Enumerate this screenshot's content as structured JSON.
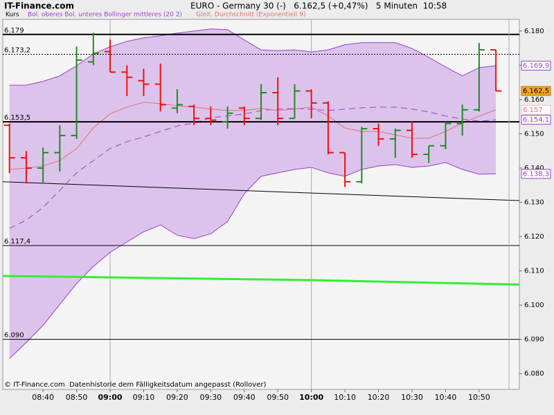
{
  "header": {
    "site": "IT-Finance.com",
    "title": "EURO - Germany 30 (-)   6.162,5 (+0,47%)   5 Minuten  10:58"
  },
  "footer": "© IT-Finance.com  Datenhistorie dem Fälligkeitsdatum angepasst (Rollover)",
  "chart_data": {
    "type": "ohlc",
    "legend": [
      {
        "text": "Kurs",
        "color": "#000000"
      },
      {
        "text": "Bol. oberes Bol. unteres Bollinger mittleres (20 2)",
        "color": "#9a3fc6"
      },
      {
        "text": "Gleit. Durchschnitt (Exponentiell 9)",
        "color": "#e07070"
      }
    ],
    "x": [
      "08:30",
      "08:35",
      "08:40",
      "08:45",
      "08:50",
      "08:55",
      "09:00",
      "09:05",
      "09:10",
      "09:15",
      "09:20",
      "09:25",
      "09:30",
      "09:35",
      "09:40",
      "09:45",
      "09:50",
      "09:55",
      "10:00",
      "10:05",
      "10:10",
      "10:15",
      "10:20",
      "10:25",
      "10:30",
      "10:35",
      "10:40",
      "10:45",
      "10:50",
      "10:55"
    ],
    "open": [
      6152.5,
      6143,
      6140,
      6144.5,
      6149.5,
      6171,
      6174,
      6168,
      6165.5,
      6164.5,
      6157.5,
      6158,
      6154.5,
      6153.5,
      6157.5,
      6154.5,
      6162,
      6154.5,
      6162.5,
      6159,
      6144.5,
      6136,
      6151.5,
      6148.5,
      6151,
      6144,
      6146.5,
      6153,
      6157,
      6174.5
    ],
    "high": [
      6153,
      6145,
      6146,
      6152.5,
      6175.5,
      6179.5,
      6177.5,
      6170,
      6169,
      6170.5,
      6163,
      6158.5,
      6158,
      6158,
      6158,
      6164.5,
      6166.5,
      6164.5,
      6163,
      6159.5,
      6144.5,
      6152,
      6153,
      6151.5,
      6153.5,
      6146.5,
      6153.5,
      6158.5,
      6176.5,
      6174.5
    ],
    "low": [
      6138.5,
      6135.5,
      6135.5,
      6139,
      6148.5,
      6170,
      6168,
      6161,
      6161,
      6156.5,
      6156,
      6152.5,
      6152.5,
      6151.5,
      6152.5,
      6154,
      6152.5,
      6154.5,
      6154.5,
      6144,
      6134.5,
      6135.5,
      6146.5,
      6143,
      6143,
      6141.5,
      6145.5,
      6149.5,
      6156.5,
      6162.5
    ],
    "close": [
      6143,
      6140,
      6144.5,
      6149.5,
      6171.5,
      6173.5,
      6168,
      6166.5,
      6164.5,
      6158.5,
      6158.5,
      6154.5,
      6154,
      6156,
      6154.5,
      6162,
      6154.5,
      6162.5,
      6159,
      6144.5,
      6136,
      6151.5,
      6148.5,
      6151,
      6144,
      6146.5,
      6153,
      6157,
      6174.5,
      6162.5
    ],
    "close_last_label": "6.162,5",
    "up_color": "#1f8a1f",
    "down_color": "#ee1111",
    "bands": {
      "color": "#9a3fc6",
      "fill": "#dcc3ec",
      "upper": {
        "values": [
          6164.2,
          6164.2,
          6165.3,
          6166.9,
          6169.9,
          6173.3,
          6175.4,
          6177,
          6178,
          6178.6,
          6179.4,
          6180,
          6180.6,
          6180.4,
          6177.4,
          6174.5,
          6174.3,
          6174.5,
          6173.9,
          6174.5,
          6176,
          6176.6,
          6176.6,
          6176.6,
          6174.9,
          6172.3,
          6169.5,
          6166.9,
          6169.3,
          6169.9
        ],
        "last_label": "6.169,9"
      },
      "middle": {
        "values": [
          6122.4,
          6124.8,
          6128.5,
          6133.5,
          6138.6,
          6142.2,
          6145.7,
          6147.7,
          6149.1,
          6150.7,
          6152.3,
          6153.1,
          6154.7,
          6155.2,
          6155.8,
          6156.8,
          6157.2,
          6157.4,
          6157.2,
          6156.8,
          6157.2,
          6157.6,
          6157.8,
          6157.8,
          6157.2,
          6156.4,
          6155.2,
          6154.3,
          6153.7,
          6154.1
        ],
        "last_label": "6.154,1",
        "dash": "9,6"
      },
      "lower": {
        "values": [
          6084.4,
          6089.1,
          6094.1,
          6100.2,
          6106.3,
          6111.3,
          6115.4,
          6118.4,
          6121.4,
          6123.4,
          6120.4,
          6119.4,
          6120.8,
          6124.4,
          6132.5,
          6137.6,
          6138.6,
          6139.6,
          6140.2,
          6138.6,
          6137.6,
          6139.6,
          6140.6,
          6141,
          6140.2,
          6140.6,
          6141.6,
          6139.6,
          6138.2,
          6138.3
        ],
        "last_label": "6.138,3"
      }
    },
    "ema": {
      "color": "#e07070",
      "values": [
        6139.6,
        6140,
        6140.6,
        6142.2,
        6145.7,
        6151.7,
        6155.8,
        6157.8,
        6159.2,
        6158.8,
        6158.2,
        6157.8,
        6157.2,
        6156.8,
        6156.8,
        6157.4,
        6156.8,
        6157.2,
        6157.8,
        6155.2,
        6151.7,
        6150.7,
        6150.7,
        6149.7,
        6148.7,
        6148.7,
        6150.7,
        6153.1,
        6155.2,
        6157
      ],
      "last_label": "6.157"
    },
    "lines": [
      {
        "color": "#000000",
        "width": 1,
        "x": [
          "08:28",
          "11:02"
        ],
        "values": [
          6136,
          6130.5
        ]
      },
      {
        "color": "#33ee33",
        "width": 3,
        "x": [
          "08:28",
          "10:00",
          "11:02"
        ],
        "values": [
          6108.5,
          6107.3,
          6106
        ]
      }
    ],
    "hlines": [
      {
        "value": 6179,
        "label": "6.179",
        "width": 2
      },
      {
        "value": 6173.2,
        "label": "6.173,2",
        "width": 1,
        "dash": "2,2"
      },
      {
        "value": 6153.5,
        "label": "6.153,5",
        "width": 2
      },
      {
        "value": 6117.4,
        "label": "6.117,4",
        "width": 1
      },
      {
        "value": 6090,
        "label": "6.090",
        "width": 1
      }
    ],
    "xlim": [
      "08:28",
      "11:02"
    ],
    "xticks": [
      "08:40",
      "08:50",
      "09:00",
      "09:10",
      "09:20",
      "09:30",
      "09:40",
      "09:50",
      "10:00",
      "10:10",
      "10:20",
      "10:30",
      "10:40",
      "10:50"
    ],
    "ylim": [
      6075.4,
      6183.4
    ],
    "yticks": [
      {
        "value": 6080,
        "label": "6.080"
      },
      {
        "value": 6090,
        "label": "6.090"
      },
      {
        "value": 6100,
        "label": "6.100"
      },
      {
        "value": 6110,
        "label": "6.110"
      },
      {
        "value": 6120,
        "label": "6.120"
      },
      {
        "value": 6130,
        "label": "6.130"
      },
      {
        "value": 6140,
        "label": "6.140"
      },
      {
        "value": 6150,
        "label": "6.150"
      },
      {
        "value": 6160,
        "label": "6.160"
      },
      {
        "value": 6170,
        "label": "6.170"
      },
      {
        "value": 6180,
        "label": "6.180"
      }
    ]
  }
}
